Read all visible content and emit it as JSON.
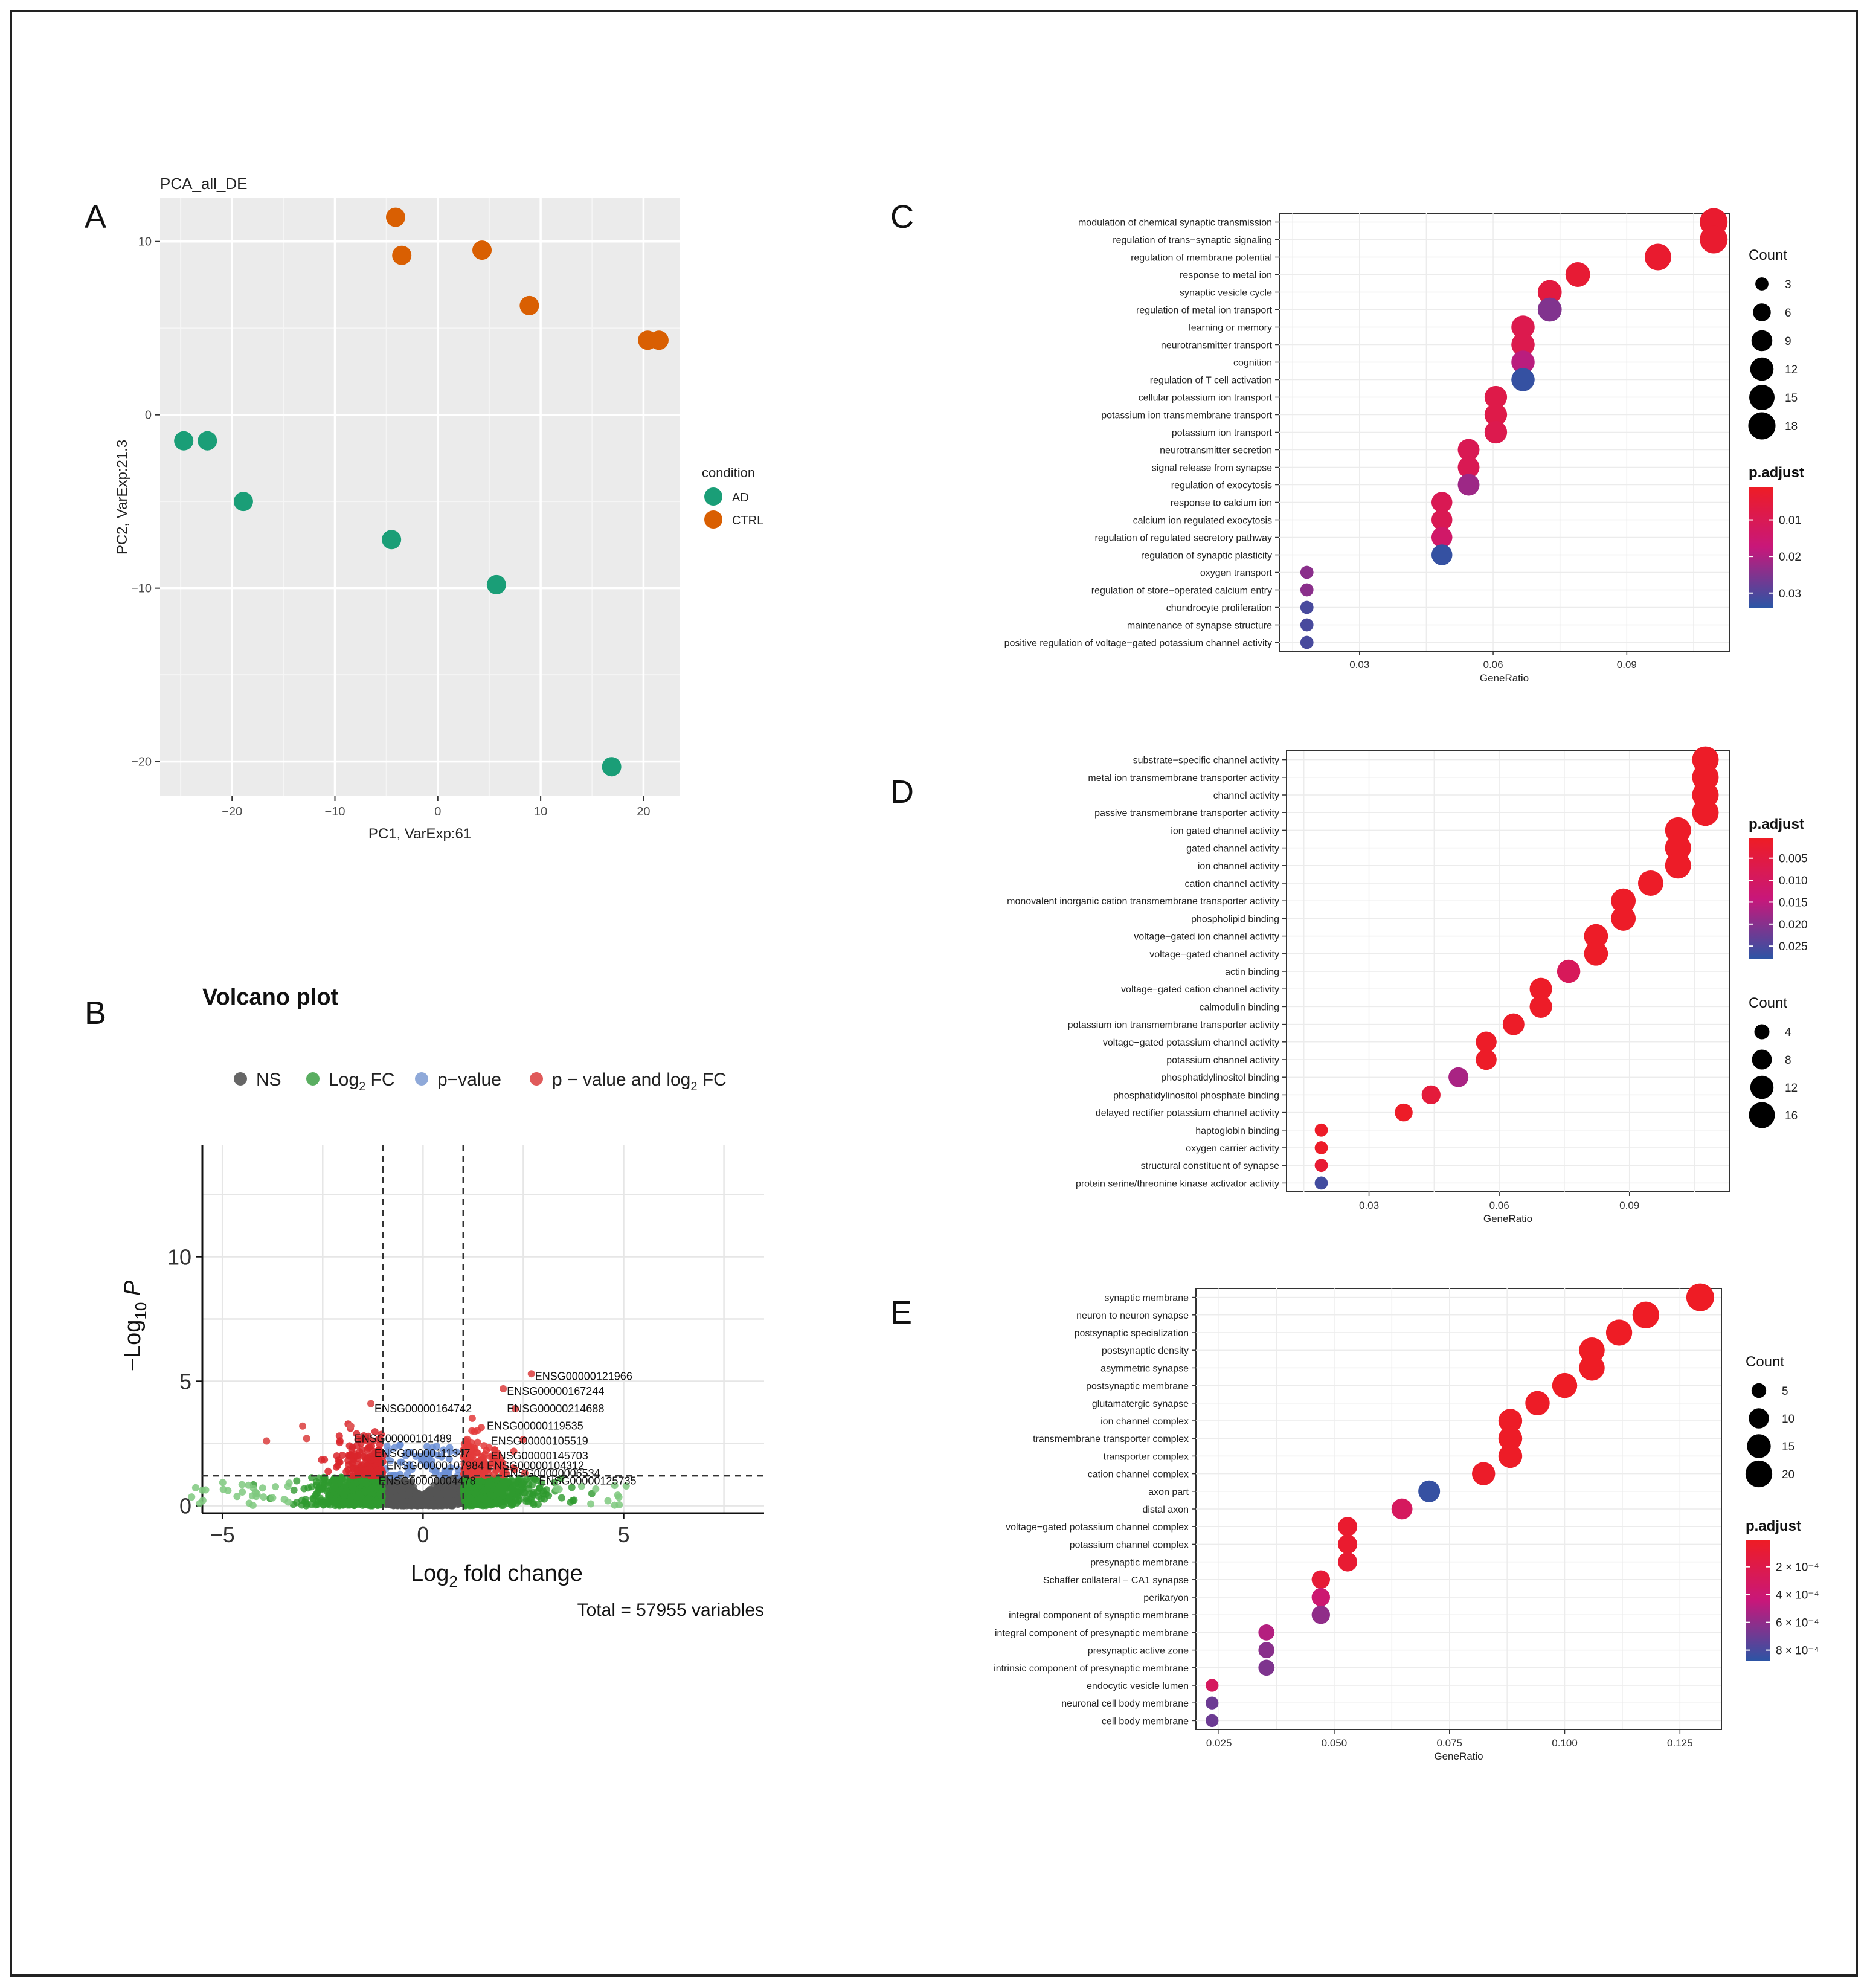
{
  "panel_letters": [
    "A",
    "B",
    "C",
    "D",
    "E"
  ],
  "chart_data": [
    {
      "id": "A",
      "type": "scatter",
      "title": "PCA_all_DE",
      "xlabel": "PC1, VarExp:61",
      "ylabel": "PC2, VarExp:21.3",
      "xlim": [
        -27,
        23.5
      ],
      "ylim": [
        -22,
        12.5
      ],
      "xticks": [
        -20,
        -10,
        0,
        10,
        20
      ],
      "yticks": [
        -20,
        -10,
        0,
        10
      ],
      "legend_title": "condition",
      "series": [
        {
          "name": "AD",
          "color": "#1a9e77",
          "points": [
            [
              -24.7,
              -1.5
            ],
            [
              -22.4,
              -1.5
            ],
            [
              -18.9,
              -5.0
            ],
            [
              -4.5,
              -7.2
            ],
            [
              5.7,
              -9.8
            ],
            [
              16.9,
              -20.3
            ]
          ]
        },
        {
          "name": "CTRL",
          "color": "#d95f02",
          "points": [
            [
              -4.1,
              11.4
            ],
            [
              -3.5,
              9.2
            ],
            [
              4.3,
              9.5
            ],
            [
              8.9,
              6.3
            ],
            [
              20.4,
              4.3
            ],
            [
              21.5,
              4.3
            ]
          ]
        }
      ]
    },
    {
      "id": "B",
      "type": "scatter",
      "title": "Volcano plot",
      "xlabel_main": "Log",
      "xlabel_sub": "2",
      "xlabel_rest": " fold change",
      "ylabel_main": "−Log",
      "ylabel_sub": "10",
      "ylabel_var": "P",
      "xlim": [
        -5.5,
        8.5
      ],
      "ylim": [
        -0.3,
        14.5
      ],
      "xticks": [
        -5,
        0,
        5
      ],
      "yticks": [
        0,
        5,
        10
      ],
      "fc_cutoff": [
        -1,
        1
      ],
      "p_cutoff": 1.2,
      "caption": "Total = 57955 variables",
      "legend": [
        {
          "label": "NS",
          "color": "#666666"
        },
        {
          "label": "Log",
          "sub": "2",
          "rest": " FC",
          "color": "#5aae61"
        },
        {
          "label": "p−value",
          "color": "#8fa9d9"
        },
        {
          "label": "p − value and log",
          "sub": "2",
          "rest": " FC",
          "color": "#e05a5a"
        }
      ],
      "labeled_genes": [
        {
          "name": "ENSG00000121966",
          "x": 2.7,
          "y": 5.2
        },
        {
          "name": "ENSG00000167244",
          "x": 2.0,
          "y": 4.6
        },
        {
          "name": "ENSG00000214688",
          "x": 2.0,
          "y": 3.9
        },
        {
          "name": "ENSG00000164742",
          "x": -1.3,
          "y": 3.9
        },
        {
          "name": "ENSG00000119535",
          "x": 1.5,
          "y": 3.2
        },
        {
          "name": "ENSG00000101489",
          "x": -1.8,
          "y": 2.7
        },
        {
          "name": "ENSG00000105519",
          "x": 1.6,
          "y": 2.6
        },
        {
          "name": "ENSG00000111347",
          "x": -1.3,
          "y": 2.1
        },
        {
          "name": "ENSG00000145703",
          "x": 1.6,
          "y": 2.0
        },
        {
          "name": "ENSG00000107984",
          "x": -1.0,
          "y": 1.6
        },
        {
          "name": "ENSG00000104312",
          "x": 1.5,
          "y": 1.6
        },
        {
          "name": "ENSG00000004478",
          "x": -1.2,
          "y": 1.0
        },
        {
          "name": "ENSG00000125735",
          "x": 2.8,
          "y": 1.0
        },
        {
          "name": "ENSG00000006534",
          "x": 1.9,
          "y": 1.3
        }
      ]
    },
    {
      "id": "C",
      "type": "scatter",
      "xlabel": "GeneRatio",
      "xlim": [
        0.012,
        0.113
      ],
      "xticks": [
        0.03,
        0.06,
        0.09
      ],
      "size_legend_title": "Count",
      "size_legend": [
        3,
        6,
        9,
        12,
        15,
        18
      ],
      "color_legend_title": "p.adjust",
      "color_ticks": [
        0.01,
        0.02,
        0.03
      ],
      "color_range": [
        0.001,
        0.034
      ],
      "terms": [
        {
          "term": "modulation of chemical synaptic transmission",
          "ratio": 0.1095,
          "count": 19,
          "padj": 0.003
        },
        {
          "term": "regulation of trans−synaptic signaling",
          "ratio": 0.1095,
          "count": 19,
          "padj": 0.003
        },
        {
          "term": "regulation of membrane potential",
          "ratio": 0.097,
          "count": 17,
          "padj": 0.003
        },
        {
          "term": "response to metal ion",
          "ratio": 0.079,
          "count": 14,
          "padj": 0.004
        },
        {
          "term": "synaptic vesicle cycle",
          "ratio": 0.0727,
          "count": 13,
          "padj": 0.006
        },
        {
          "term": "regulation of metal ion transport",
          "ratio": 0.0727,
          "count": 13,
          "padj": 0.025
        },
        {
          "term": "learning or memory",
          "ratio": 0.0667,
          "count": 12,
          "padj": 0.009
        },
        {
          "term": "neurotransmitter transport",
          "ratio": 0.0667,
          "count": 12,
          "padj": 0.009
        },
        {
          "term": "cognition",
          "ratio": 0.0667,
          "count": 12,
          "padj": 0.019
        },
        {
          "term": "regulation of T cell activation",
          "ratio": 0.0667,
          "count": 12,
          "padj": 0.033
        },
        {
          "term": "cellular potassium ion transport",
          "ratio": 0.0606,
          "count": 11,
          "padj": 0.008
        },
        {
          "term": "potassium ion transmembrane transport",
          "ratio": 0.0606,
          "count": 11,
          "padj": 0.008
        },
        {
          "term": "potassium ion transport",
          "ratio": 0.0606,
          "count": 11,
          "padj": 0.009
        },
        {
          "term": "neurotransmitter secretion",
          "ratio": 0.0545,
          "count": 10,
          "padj": 0.01
        },
        {
          "term": "signal release from synapse",
          "ratio": 0.0545,
          "count": 10,
          "padj": 0.01
        },
        {
          "term": "regulation of exocytosis",
          "ratio": 0.0545,
          "count": 10,
          "padj": 0.022
        },
        {
          "term": "response to calcium ion",
          "ratio": 0.0485,
          "count": 9,
          "padj": 0.01
        },
        {
          "term": "calcium ion regulated exocytosis",
          "ratio": 0.0485,
          "count": 9,
          "padj": 0.01
        },
        {
          "term": "regulation of regulated secretory pathway",
          "ratio": 0.0485,
          "count": 9,
          "padj": 0.014
        },
        {
          "term": "regulation of synaptic plasticity",
          "ratio": 0.0485,
          "count": 9,
          "padj": 0.033
        },
        {
          "term": "oxygen transport",
          "ratio": 0.0182,
          "count": 3,
          "padj": 0.024
        },
        {
          "term": "regulation of store−operated calcium entry",
          "ratio": 0.0182,
          "count": 3,
          "padj": 0.024
        },
        {
          "term": "chondrocyte proliferation",
          "ratio": 0.0182,
          "count": 3,
          "padj": 0.031
        },
        {
          "term": "maintenance of synapse structure",
          "ratio": 0.0182,
          "count": 3,
          "padj": 0.031
        },
        {
          "term": "positive regulation of voltage−gated potassium channel activity",
          "ratio": 0.0182,
          "count": 3,
          "padj": 0.031
        }
      ]
    },
    {
      "id": "D",
      "type": "scatter",
      "xlabel": "GeneRatio",
      "xlim": [
        0.011,
        0.113
      ],
      "xticks": [
        0.03,
        0.06,
        0.09
      ],
      "size_legend_title": "Count",
      "size_legend": [
        4,
        8,
        12,
        16
      ],
      "color_legend_title": "p.adjust",
      "color_ticks": [
        0.005,
        0.01,
        0.015,
        0.02,
        0.025
      ],
      "color_tick_labels": [
        "0.005",
        "0.010",
        "0.015",
        "0.020",
        "0.025"
      ],
      "color_range": [
        0.0005,
        0.028
      ],
      "terms": [
        {
          "term": "substrate−specific channel activity",
          "ratio": 0.1075,
          "count": 17,
          "padj": 0.001
        },
        {
          "term": "metal ion transmembrane transporter activity",
          "ratio": 0.1075,
          "count": 17,
          "padj": 0.001
        },
        {
          "term": "channel activity",
          "ratio": 0.1075,
          "count": 17,
          "padj": 0.001
        },
        {
          "term": "passive transmembrane transporter activity",
          "ratio": 0.1075,
          "count": 17,
          "padj": 0.001
        },
        {
          "term": "ion gated channel activity",
          "ratio": 0.1012,
          "count": 16,
          "padj": 0.001
        },
        {
          "term": "gated channel activity",
          "ratio": 0.1012,
          "count": 16,
          "padj": 0.001
        },
        {
          "term": "ion channel activity",
          "ratio": 0.1012,
          "count": 16,
          "padj": 0.001
        },
        {
          "term": "cation channel activity",
          "ratio": 0.0949,
          "count": 15,
          "padj": 0.001
        },
        {
          "term": "monovalent inorganic cation transmembrane transporter activity",
          "ratio": 0.0886,
          "count": 14,
          "padj": 0.001
        },
        {
          "term": "phospholipid binding",
          "ratio": 0.0886,
          "count": 14,
          "padj": 0.001
        },
        {
          "term": "voltage−gated ion channel activity",
          "ratio": 0.0823,
          "count": 13,
          "padj": 0.001
        },
        {
          "term": "voltage−gated channel activity",
          "ratio": 0.0823,
          "count": 13,
          "padj": 0.001
        },
        {
          "term": "actin binding",
          "ratio": 0.076,
          "count": 12,
          "padj": 0.009
        },
        {
          "term": "voltage−gated cation channel activity",
          "ratio": 0.0696,
          "count": 11,
          "padj": 0.001
        },
        {
          "term": "calmodulin binding",
          "ratio": 0.0696,
          "count": 11,
          "padj": 0.001
        },
        {
          "term": "potassium ion transmembrane transporter activity",
          "ratio": 0.0633,
          "count": 10,
          "padj": 0.001
        },
        {
          "term": "voltage−gated potassium channel activity",
          "ratio": 0.057,
          "count": 9,
          "padj": 0.001
        },
        {
          "term": "potassium channel activity",
          "ratio": 0.057,
          "count": 9,
          "padj": 0.001
        },
        {
          "term": "phosphatidylinositol binding",
          "ratio": 0.0506,
          "count": 8,
          "padj": 0.017
        },
        {
          "term": "phosphatidylinositol phosphate binding",
          "ratio": 0.0443,
          "count": 7,
          "padj": 0.004
        },
        {
          "term": "delayed rectifier potassium channel activity",
          "ratio": 0.038,
          "count": 6,
          "padj": 0.001
        },
        {
          "term": "haptoglobin binding",
          "ratio": 0.019,
          "count": 3,
          "padj": 0.001
        },
        {
          "term": "oxygen carrier activity",
          "ratio": 0.019,
          "count": 3,
          "padj": 0.001
        },
        {
          "term": "structural constituent of synapse",
          "ratio": 0.019,
          "count": 3,
          "padj": 0.003
        },
        {
          "term": "protein serine/threonine kinase activator activity",
          "ratio": 0.019,
          "count": 3,
          "padj": 0.026
        }
      ]
    },
    {
      "id": "E",
      "type": "scatter",
      "xlabel": "GeneRatio",
      "xlim": [
        0.02,
        0.134
      ],
      "xticks": [
        0.025,
        0.05,
        0.075,
        0.1,
        0.125
      ],
      "xtick_labels": [
        "0.025",
        "0.050",
        "0.075",
        "0.100",
        "0.125"
      ],
      "size_legend_title": "Count",
      "size_legend": [
        5,
        10,
        15,
        20
      ],
      "color_legend_title": "p.adjust",
      "color_ticks": [
        0.0002,
        0.0004,
        0.0006,
        0.0008
      ],
      "color_tick_labels": [
        "2 × 10⁻⁴",
        "4 × 10⁻⁴",
        "6 × 10⁻⁴",
        "8 × 10⁻⁴"
      ],
      "color_range": [
        1e-05,
        0.00088
      ],
      "terms": [
        {
          "term": "synaptic membrane",
          "ratio": 0.1294,
          "count": 22,
          "padj": 1e-05
        },
        {
          "term": "neuron to neuron synapse",
          "ratio": 0.1176,
          "count": 20,
          "padj": 1e-05
        },
        {
          "term": "postsynaptic specialization",
          "ratio": 0.1118,
          "count": 19,
          "padj": 1e-05
        },
        {
          "term": "postsynaptic density",
          "ratio": 0.1059,
          "count": 18,
          "padj": 1e-05
        },
        {
          "term": "asymmetric synapse",
          "ratio": 0.1059,
          "count": 18,
          "padj": 1e-05
        },
        {
          "term": "postsynaptic membrane",
          "ratio": 0.1,
          "count": 17,
          "padj": 1e-05
        },
        {
          "term": "glutamatergic synapse",
          "ratio": 0.0941,
          "count": 16,
          "padj": 2e-05
        },
        {
          "term": "ion channel complex",
          "ratio": 0.0882,
          "count": 15,
          "padj": 2e-05
        },
        {
          "term": "transmembrane transporter complex",
          "ratio": 0.0882,
          "count": 15,
          "padj": 2e-05
        },
        {
          "term": "transporter complex",
          "ratio": 0.0882,
          "count": 15,
          "padj": 2e-05
        },
        {
          "term": "cation channel complex",
          "ratio": 0.0824,
          "count": 14,
          "padj": 3e-05
        },
        {
          "term": "axon part",
          "ratio": 0.0706,
          "count": 12,
          "padj": 0.00085
        },
        {
          "term": "distal axon",
          "ratio": 0.0647,
          "count": 11,
          "padj": 0.0003
        },
        {
          "term": "voltage−gated potassium channel complex",
          "ratio": 0.0529,
          "count": 9,
          "padj": 6e-05
        },
        {
          "term": "potassium channel complex",
          "ratio": 0.0529,
          "count": 9,
          "padj": 6e-05
        },
        {
          "term": "presynaptic membrane",
          "ratio": 0.0529,
          "count": 9,
          "padj": 8e-05
        },
        {
          "term": "Schaffer collateral − CA1 synapse",
          "ratio": 0.0471,
          "count": 8,
          "padj": 0.0001
        },
        {
          "term": "perikaryon",
          "ratio": 0.0471,
          "count": 8,
          "padj": 0.0004
        },
        {
          "term": "integral component of synaptic membrane",
          "ratio": 0.0471,
          "count": 8,
          "padj": 0.0006
        },
        {
          "term": "integral component of presynaptic membrane",
          "ratio": 0.0353,
          "count": 6,
          "padj": 0.0005
        },
        {
          "term": "presynaptic active zone",
          "ratio": 0.0353,
          "count": 6,
          "padj": 0.00062
        },
        {
          "term": "intrinsic component of presynaptic membrane",
          "ratio": 0.0353,
          "count": 6,
          "padj": 0.00065
        },
        {
          "term": "endocytic vesicle lumen",
          "ratio": 0.0235,
          "count": 4,
          "padj": 0.0003
        },
        {
          "term": "neuronal cell body membrane",
          "ratio": 0.0235,
          "count": 4,
          "padj": 0.0007
        },
        {
          "term": "cell body membrane",
          "ratio": 0.0235,
          "count": 4,
          "padj": 0.0007
        }
      ]
    }
  ]
}
